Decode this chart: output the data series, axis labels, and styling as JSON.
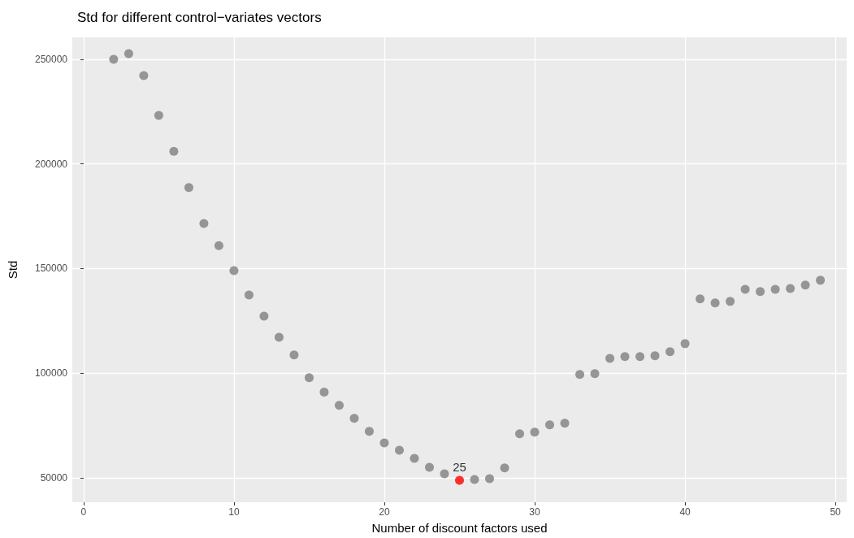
{
  "chart_data": {
    "type": "scatter",
    "title": "Std for different control−variates vectors",
    "xlabel": "Number of discount factors used",
    "ylabel": "Std",
    "xlim": [
      -0.75,
      50.75
    ],
    "xticks": [
      0,
      10,
      20,
      30,
      40,
      50
    ],
    "ylim": [
      38300,
      260500
    ],
    "yticks": [
      50000,
      100000,
      150000,
      200000,
      250000
    ],
    "grid": true,
    "marker": "circle",
    "series": [
      {
        "color": "#7f7f7f",
        "x": [
          2,
          3,
          4,
          5,
          6,
          7,
          8,
          9,
          10,
          11,
          12,
          13,
          14,
          15,
          16,
          17,
          18,
          19,
          20,
          21,
          22,
          23,
          24,
          26,
          27,
          28,
          29,
          30,
          31,
          32,
          33,
          34,
          35,
          36,
          37,
          38,
          39,
          40,
          41,
          42,
          43,
          44,
          45,
          46,
          47,
          48,
          49
        ],
        "values": [
          250000,
          252700,
          242200,
          223200,
          206000,
          188700,
          171500,
          161000,
          149000,
          137400,
          127300,
          117200,
          108700,
          97800,
          90900,
          84600,
          78400,
          72200,
          66700,
          63200,
          59300,
          55000,
          51900,
          49200,
          49600,
          54700,
          71000,
          71800,
          75300,
          76100,
          99400,
          99800,
          107100,
          107900,
          107900,
          108300,
          110300,
          114100,
          135500,
          133600,
          134300,
          140100,
          139000,
          140100,
          140500,
          142100,
          144400
        ]
      },
      {
        "color": "#ff0000",
        "x": [
          25
        ],
        "values": [
          48800
        ]
      }
    ],
    "annotations": [
      {
        "text": "25",
        "x": 25,
        "y": 48800
      }
    ]
  }
}
